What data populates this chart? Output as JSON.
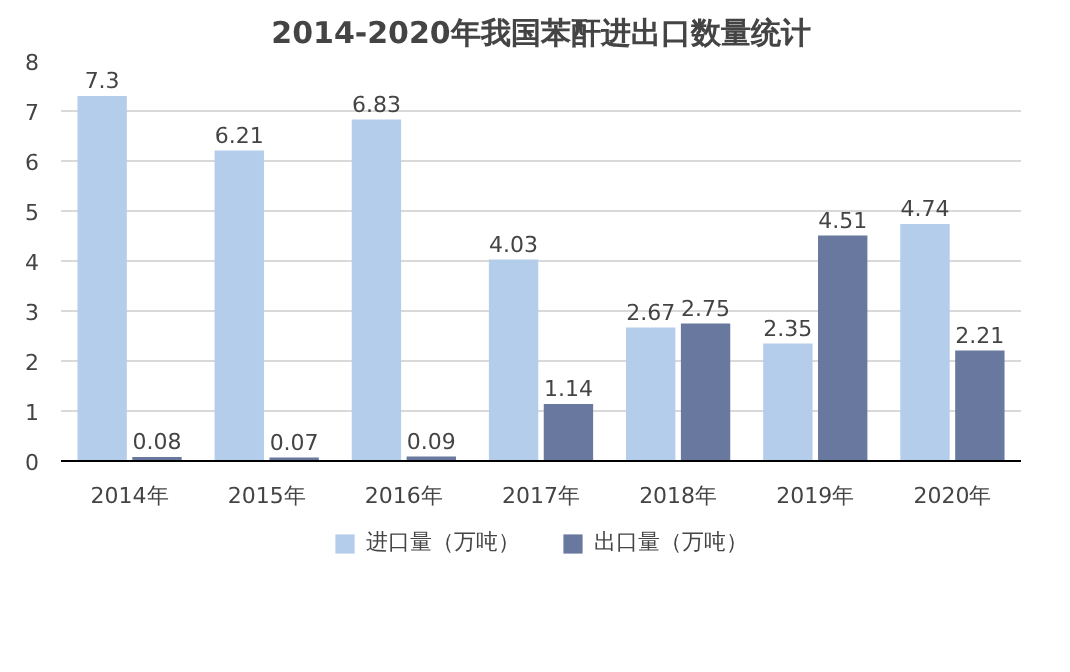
{
  "chart_data": {
    "type": "bar",
    "title": "2014-2020年我国苯酐进出口数量统计",
    "categories": [
      "2014年",
      "2015年",
      "2016年",
      "2017年",
      "2018年",
      "2019年",
      "2020年"
    ],
    "series": [
      {
        "name": "进口量（万吨）",
        "color": "#b3cdea",
        "values": [
          7.3,
          6.21,
          6.83,
          4.03,
          2.67,
          2.35,
          4.74
        ]
      },
      {
        "name": "出口量（万吨）",
        "color": "#68789f",
        "values": [
          0.08,
          0.07,
          0.09,
          1.14,
          2.75,
          4.51,
          2.21
        ]
      }
    ],
    "ylim": [
      0,
      8
    ],
    "yticks": [
      0,
      1,
      2,
      3,
      4,
      5,
      6,
      7,
      8
    ],
    "grid": "y",
    "legend": "bottom",
    "data_labels": true
  }
}
